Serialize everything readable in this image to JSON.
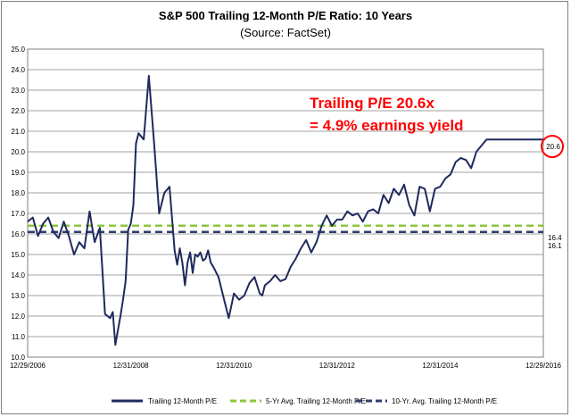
{
  "chart_data": {
    "type": "line",
    "title": "S&P 500 Trailing 12-Month P/E Ratio: 10 Years",
    "subtitle": "(Source: FactSet)",
    "ylim": [
      10.0,
      25.0
    ],
    "y_ticks": [
      "10.0",
      "11.0",
      "12.0",
      "13.0",
      "14.0",
      "15.0",
      "16.0",
      "17.0",
      "18.0",
      "19.0",
      "20.0",
      "21.0",
      "22.0",
      "23.0",
      "24.0",
      "25.0"
    ],
    "x_tick_labels": [
      "12/29/2006",
      "12/31/2008",
      "12/31/2010",
      "12/31/2012",
      "12/31/2014",
      "12/29/2016"
    ],
    "x_range": [
      2007.0,
      2017.0
    ],
    "series": [
      {
        "name": "Trailing 12-Month P/E",
        "color": "#1f2a5e",
        "x": [
          2007.0,
          2007.1,
          2007.2,
          2007.3,
          2007.4,
          2007.5,
          2007.6,
          2007.7,
          2007.8,
          2007.9,
          2008.0,
          2008.1,
          2008.2,
          2008.3,
          2008.4,
          2008.5,
          2008.6,
          2008.65,
          2008.7,
          2008.75,
          2008.8,
          2008.85,
          2008.9,
          2008.95,
          2009.0,
          2009.05,
          2009.1,
          2009.15,
          2009.25,
          2009.35,
          2009.45,
          2009.55,
          2009.65,
          2009.75,
          2009.85,
          2009.9,
          2009.95,
          2010.0,
          2010.05,
          2010.1,
          2010.15,
          2010.2,
          2010.25,
          2010.3,
          2010.35,
          2010.4,
          2010.45,
          2010.5,
          2010.55,
          2010.6,
          2010.7,
          2010.8,
          2010.9,
          2011.0,
          2011.1,
          2011.2,
          2011.3,
          2011.4,
          2011.5,
          2011.55,
          2011.6,
          2011.65,
          2011.7,
          2011.8,
          2011.9,
          2012.0,
          2012.1,
          2012.2,
          2012.3,
          2012.4,
          2012.5,
          2012.6,
          2012.7,
          2012.8,
          2012.9,
          2013.0,
          2013.1,
          2013.2,
          2013.3,
          2013.4,
          2013.5,
          2013.6,
          2013.7,
          2013.8,
          2013.9,
          2014.0,
          2014.1,
          2014.2,
          2014.3,
          2014.4,
          2014.5,
          2014.6,
          2014.7,
          2014.8,
          2014.9,
          2015.0,
          2015.1,
          2015.2,
          2015.3,
          2015.4,
          2015.5,
          2015.6,
          2015.7,
          2015.8,
          2015.9,
          2016.0,
          2016.1,
          2016.2,
          2016.3,
          2016.4,
          2016.5,
          2016.6,
          2016.7,
          2016.8,
          2016.9,
          2017.0
        ],
        "values": [
          16.6,
          16.8,
          15.9,
          16.5,
          16.8,
          16.1,
          15.8,
          16.6,
          15.9,
          15.0,
          15.6,
          15.3,
          17.1,
          15.6,
          16.3,
          12.1,
          11.9,
          12.2,
          10.6,
          11.3,
          12.0,
          12.8,
          13.7,
          16.2,
          16.5,
          17.4,
          20.4,
          20.9,
          20.6,
          23.7,
          20.5,
          17.0,
          18.0,
          18.3,
          15.2,
          14.5,
          15.3,
          14.6,
          13.5,
          14.6,
          15.1,
          14.1,
          15.0,
          14.9,
          15.1,
          14.7,
          14.8,
          15.2,
          14.6,
          14.4,
          13.9,
          12.9,
          11.9,
          13.1,
          12.8,
          13.0,
          13.6,
          13.9,
          13.1,
          13.0,
          13.5,
          13.6,
          13.7,
          14.0,
          13.7,
          13.8,
          14.4,
          14.8,
          15.3,
          15.7,
          15.1,
          15.6,
          16.4,
          16.9,
          16.4,
          16.7,
          16.7,
          17.1,
          16.9,
          17.0,
          16.6,
          17.1,
          17.2,
          17.0,
          17.9,
          17.5,
          18.2,
          17.9,
          18.4,
          17.4,
          16.9,
          18.3,
          18.2,
          17.1,
          18.2,
          18.3,
          18.7,
          18.9,
          19.5,
          19.7,
          19.6,
          19.2,
          20.0,
          20.3,
          20.6,
          20.6,
          20.6,
          20.6,
          20.6,
          20.6,
          20.6,
          20.6,
          20.6,
          20.6,
          20.6,
          20.6
        ]
      },
      {
        "name": "5-Yr Avg. Trailing 12-Month P/E",
        "color": "#8dc63f",
        "value": 16.4
      },
      {
        "name": "10-Yr. Avg. Trailing 12-Month P/E",
        "color": "#2e3d6b",
        "value": 16.1
      }
    ],
    "end_labels": [
      "20.6",
      "16.4",
      "16.1"
    ],
    "annotation": [
      "Trailing P/E 20.6x",
      "= 4.9% earnings yield"
    ],
    "annotation_color": "#ff0000",
    "gridlines": true,
    "legend_position": "bottom"
  }
}
